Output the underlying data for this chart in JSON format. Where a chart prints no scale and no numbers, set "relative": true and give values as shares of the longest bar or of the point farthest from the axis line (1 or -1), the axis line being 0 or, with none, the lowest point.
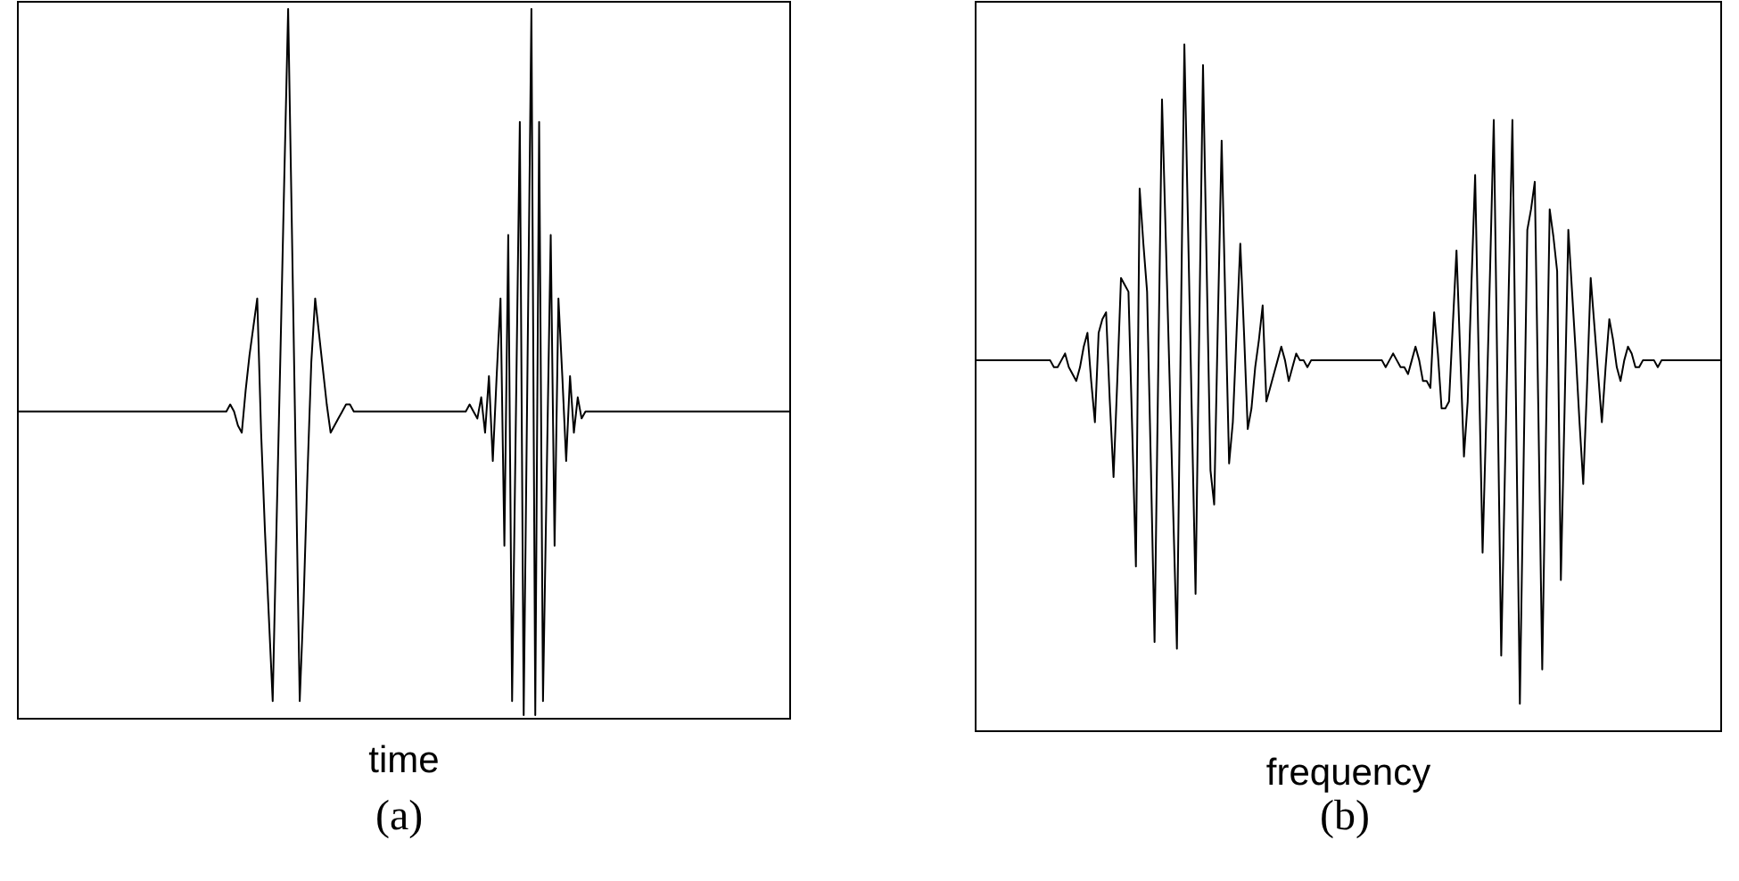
{
  "chart_data": [
    {
      "type": "line",
      "xlabel": "time",
      "annotations": [
        "(a)"
      ],
      "relative": true,
      "marker": "none",
      "line_style": "solid",
      "categories": [
        null,
        null,
        null,
        null,
        null,
        null,
        null,
        null,
        null,
        null,
        null,
        null,
        null,
        null,
        null,
        null,
        null,
        null,
        null,
        null,
        null,
        null,
        null,
        null,
        null,
        null,
        null,
        null,
        null,
        null,
        null,
        null,
        null,
        null,
        null,
        null,
        null,
        null,
        null,
        null,
        null,
        null,
        null,
        null,
        null,
        null,
        null,
        null,
        null,
        null,
        null,
        null,
        null,
        null,
        null,
        null,
        null,
        null,
        null,
        null,
        null,
        null,
        null,
        null,
        null,
        null,
        null,
        null,
        null,
        null,
        null,
        null,
        null,
        null,
        null,
        null,
        null,
        null,
        null,
        null,
        null,
        null,
        null,
        null,
        null,
        null,
        null,
        null,
        null,
        null,
        null,
        null,
        null,
        null,
        null,
        null,
        null,
        null,
        null,
        null,
        null,
        null,
        null,
        null,
        null,
        null,
        null,
        null,
        null,
        null,
        null,
        null,
        null,
        null,
        null,
        null,
        null,
        null,
        null,
        null,
        null,
        null,
        null,
        null,
        null,
        null,
        null,
        null,
        null,
        null,
        null,
        null,
        null,
        null,
        null,
        null,
        null,
        null,
        null,
        null,
        null,
        null,
        null,
        null,
        null,
        null,
        null,
        null,
        null,
        null,
        null,
        null,
        null,
        null,
        null,
        null,
        null,
        null,
        null,
        null,
        null,
        null,
        null,
        null,
        null,
        null,
        null,
        null,
        null,
        null,
        null,
        null,
        null,
        null,
        null,
        null,
        null,
        null,
        null,
        null,
        null,
        null,
        null,
        null,
        null,
        null,
        null,
        null,
        null,
        null,
        null,
        null,
        null,
        null,
        null,
        null,
        null,
        null,
        null,
        null,
        null
      ],
      "series": [
        {
          "color": "#000000",
          "values": [
            0.43,
            0.43,
            0.43,
            0.43,
            0.43,
            0.43,
            0.43,
            0.43,
            0.43,
            0.43,
            0.43,
            0.43,
            0.43,
            0.43,
            0.43,
            0.43,
            0.43,
            0.43,
            0.43,
            0.43,
            0.43,
            0.43,
            0.43,
            0.43,
            0.43,
            0.43,
            0.43,
            0.43,
            0.43,
            0.43,
            0.43,
            0.43,
            0.43,
            0.43,
            0.43,
            0.43,
            0.43,
            0.43,
            0.43,
            0.43,
            0.43,
            0.43,
            0.43,
            0.43,
            0.43,
            0.43,
            0.43,
            0.43,
            0.43,
            0.43,
            0.43,
            0.43,
            0.43,
            0.43,
            0.43,
            0.44,
            0.43,
            0.41,
            0.4,
            0.46,
            0.51,
            0.55,
            0.59,
            0.4,
            0.26,
            0.14,
            0.02,
            0.27,
            0.51,
            0.76,
            1,
            0.68,
            0.35,
            0.02,
            0.16,
            0.34,
            0.5,
            0.59,
            0.54,
            0.49,
            0.44,
            0.4,
            0.41,
            0.42,
            0.43,
            0.44,
            0.44,
            0.43,
            0.43,
            0.43,
            0.43,
            0.43,
            0.43,
            0.43,
            0.43,
            0.43,
            0.43,
            0.43,
            0.43,
            0.43,
            0.43,
            0.43,
            0.43,
            0.43,
            0.43,
            0.43,
            0.43,
            0.43,
            0.43,
            0.43,
            0.43,
            0.43,
            0.43,
            0.43,
            0.43,
            0.43,
            0.43,
            0.44,
            0.43,
            0.42,
            0.45,
            0.4,
            0.48,
            0.36,
            0.48,
            0.59,
            0.24,
            0.68,
            0.02,
            0.43,
            0.84,
            0,
            0.5,
            1,
            0,
            0.84,
            0.02,
            0.35,
            0.68,
            0.24,
            0.59,
            0.48,
            0.36,
            0.48,
            0.4,
            0.45,
            0.42,
            0.43,
            0.43,
            0.43,
            0.43,
            0.43,
            0.43,
            0.43,
            0.43,
            0.43,
            0.43,
            0.43,
            0.43,
            0.43,
            0.43,
            0.43,
            0.43,
            0.43,
            0.43,
            0.43,
            0.43,
            0.43,
            0.43,
            0.43,
            0.43,
            0.43,
            0.43,
            0.43,
            0.43,
            0.43,
            0.43,
            0.43,
            0.43,
            0.43,
            0.43,
            0.43,
            0.43,
            0.43,
            0.43,
            0.43,
            0.43,
            0.43,
            0.43,
            0.43,
            0.43,
            0.43,
            0.43,
            0.43,
            0.43,
            0.43,
            0.43,
            0.43,
            0.43,
            0.43,
            0.43
          ]
        }
      ]
    },
    {
      "type": "line",
      "xlabel": "frequency",
      "annotations": [
        "(b)"
      ],
      "relative": true,
      "marker": "none",
      "line_style": "solid",
      "categories": [
        null,
        null,
        null,
        null,
        null,
        null,
        null,
        null,
        null,
        null,
        null,
        null,
        null,
        null,
        null,
        null,
        null,
        null,
        null,
        null,
        null,
        null,
        null,
        null,
        null,
        null,
        null,
        null,
        null,
        null,
        null,
        null,
        null,
        null,
        null,
        null,
        null,
        null,
        null,
        null,
        null,
        null,
        null,
        null,
        null,
        null,
        null,
        null,
        null,
        null,
        null,
        null,
        null,
        null,
        null,
        null,
        null,
        null,
        null,
        null,
        null,
        null,
        null,
        null,
        null,
        null,
        null,
        null,
        null,
        null,
        null,
        null,
        null,
        null,
        null,
        null,
        null,
        null,
        null,
        null,
        null,
        null,
        null,
        null,
        null,
        null,
        null,
        null,
        null,
        null,
        null,
        null,
        null,
        null,
        null,
        null,
        null,
        null,
        null,
        null,
        null,
        null,
        null,
        null,
        null,
        null,
        null,
        null,
        null,
        null,
        null,
        null,
        null,
        null,
        null,
        null,
        null,
        null,
        null,
        null,
        null,
        null,
        null,
        null,
        null,
        null,
        null,
        null,
        null,
        null,
        null,
        null,
        null,
        null,
        null,
        null,
        null,
        null,
        null,
        null,
        null,
        null,
        null,
        null,
        null,
        null,
        null,
        null,
        null,
        null,
        null,
        null,
        null,
        null,
        null,
        null,
        null,
        null,
        null,
        null,
        null,
        null,
        null,
        null,
        null,
        null,
        null,
        null,
        null,
        null,
        null,
        null,
        null,
        null,
        null,
        null,
        null,
        null,
        null,
        null,
        null,
        null,
        null,
        null,
        null,
        null,
        null,
        null,
        null,
        null,
        null,
        null,
        null,
        null,
        null,
        null,
        null,
        null,
        null,
        null,
        null
      ],
      "series": [
        {
          "color": "#000000",
          "values": [
            0.54,
            0.54,
            0.54,
            0.54,
            0.54,
            0.54,
            0.54,
            0.54,
            0.54,
            0.54,
            0.54,
            0.54,
            0.54,
            0.54,
            0.54,
            0.54,
            0.54,
            0.54,
            0.54,
            0.54,
            0.54,
            0.53,
            0.53,
            0.54,
            0.55,
            0.53,
            0.52,
            0.51,
            0.53,
            0.56,
            0.58,
            0.51,
            0.45,
            0.58,
            0.6,
            0.61,
            0.48,
            0.37,
            0.51,
            0.66,
            0.65,
            0.64,
            0.44,
            0.24,
            0.79,
            0.71,
            0.64,
            0.39,
            0.13,
            0.53,
            0.92,
            0.72,
            0.52,
            0.32,
            0.12,
            0.56,
            1,
            0.73,
            0.46,
            0.2,
            0.59,
            0.97,
            0.67,
            0.38,
            0.33,
            0.6,
            0.86,
            0.62,
            0.39,
            0.45,
            0.58,
            0.71,
            0.58,
            0.44,
            0.47,
            0.53,
            0.57,
            0.62,
            0.48,
            0.5,
            0.52,
            0.54,
            0.56,
            0.54,
            0.51,
            0.53,
            0.55,
            0.54,
            0.54,
            0.53,
            0.54,
            0.54,
            0.54,
            0.54,
            0.54,
            0.54,
            0.54,
            0.54,
            0.54,
            0.54,
            0.54,
            0.54,
            0.54,
            0.54,
            0.54,
            0.54,
            0.54,
            0.54,
            0.54,
            0.54,
            0.53,
            0.54,
            0.55,
            0.54,
            0.53,
            0.53,
            0.52,
            0.54,
            0.56,
            0.54,
            0.51,
            0.51,
            0.5,
            0.61,
            0.55,
            0.47,
            0.47,
            0.48,
            0.59,
            0.7,
            0.55,
            0.4,
            0.48,
            0.65,
            0.81,
            0.53,
            0.26,
            0.46,
            0.67,
            0.89,
            0.5,
            0.11,
            0.38,
            0.64,
            0.89,
            0.46,
            0.04,
            0.39,
            0.73,
            0.76,
            0.8,
            0.45,
            0.09,
            0.43,
            0.76,
            0.72,
            0.67,
            0.22,
            0.47,
            0.73,
            0.64,
            0.55,
            0.45,
            0.36,
            0.5,
            0.66,
            0.59,
            0.52,
            0.45,
            0.53,
            0.6,
            0.57,
            0.53,
            0.51,
            0.54,
            0.56,
            0.55,
            0.53,
            0.53,
            0.54,
            0.54,
            0.54,
            0.54,
            0.53,
            0.54,
            0.54,
            0.54,
            0.54,
            0.54,
            0.54,
            0.54,
            0.54,
            0.54,
            0.54,
            0.54,
            0.54,
            0.54,
            0.54,
            0.54,
            0.54,
            0.54
          ]
        }
      ]
    }
  ]
}
